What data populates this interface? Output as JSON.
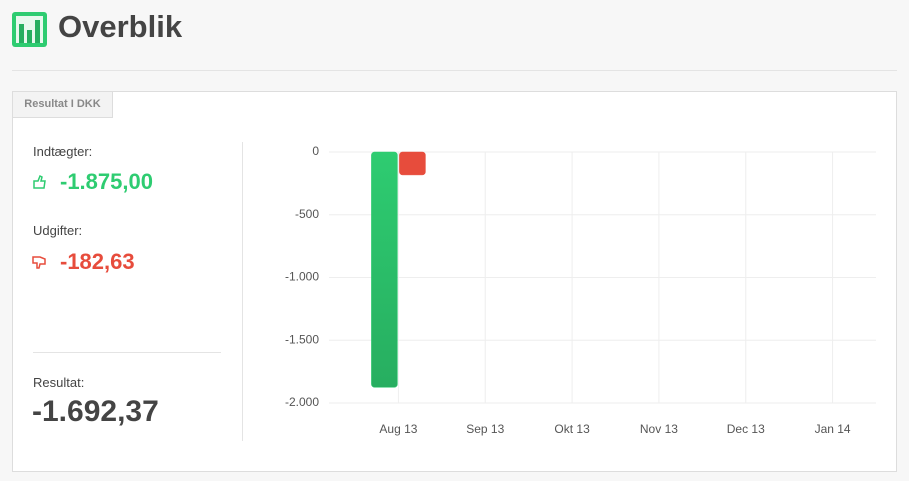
{
  "header": {
    "title": "Overblik"
  },
  "tab": {
    "label": "Resultat I DKK"
  },
  "summary": {
    "income": {
      "label": "Indtægter:",
      "value": "-1.875,00"
    },
    "expense": {
      "label": "Udgifter:",
      "value": "-182,63"
    },
    "result": {
      "label": "Resultat:",
      "value": "-1.692,37"
    }
  },
  "chart_data": {
    "type": "bar",
    "categories": [
      "Aug 13",
      "Sep 13",
      "Okt 13",
      "Nov 13",
      "Dec 13",
      "Jan 14"
    ],
    "series": [
      {
        "color": "#2ecc71",
        "values": [
          -1875,
          null,
          null,
          null,
          null,
          null
        ]
      },
      {
        "color": "#e74c3c",
        "values": [
          -182.63,
          null,
          null,
          null,
          null,
          null
        ]
      }
    ],
    "ylim": [
      -2000,
      0
    ],
    "yticks": [
      0,
      -500,
      {
        "value": -1000,
        "label": "-1.000"
      },
      {
        "value": -1500,
        "label": "-1.500"
      },
      {
        "value": -2000,
        "label": "-2.000"
      }
    ],
    "grid": true
  }
}
